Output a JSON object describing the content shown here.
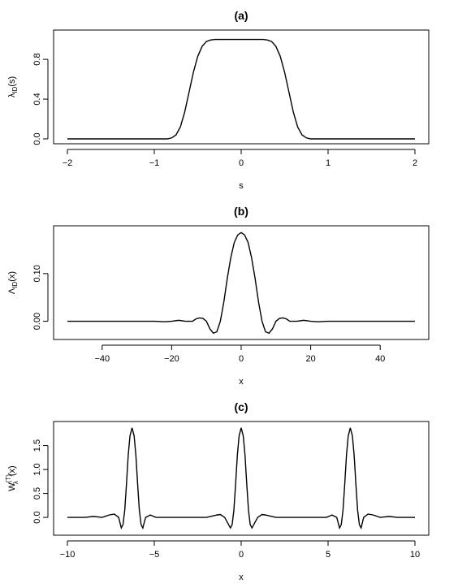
{
  "figure": {
    "background": "#ffffff",
    "line_color": "#000000"
  },
  "chart_data": [
    {
      "type": "line",
      "title": "(a)",
      "xlabel": "s",
      "ylabel": "λ",
      "ylabel_sub": "ID",
      "ylabel_tail": "(s)",
      "xlim": [
        -2,
        2
      ],
      "ylim": [
        0,
        1
      ],
      "xticks": [
        -2,
        -1,
        0,
        1,
        2
      ],
      "xtick_labels": [
        "−2",
        "−1",
        "0",
        "1",
        "2"
      ],
      "yticks": [
        0.0,
        0.4,
        0.8
      ],
      "ytick_labels": [
        "0.0",
        "0.4",
        "0.8"
      ],
      "series": [
        {
          "x": [
            -2.0,
            -1.5,
            -1.0,
            -0.85,
            -0.8,
            -0.75,
            -0.7,
            -0.65,
            -0.6,
            -0.55,
            -0.5,
            -0.45,
            -0.4,
            -0.35,
            -0.3,
            -0.25,
            0.0,
            0.25,
            0.3,
            0.35,
            0.4,
            0.45,
            0.5,
            0.55,
            0.6,
            0.65,
            0.7,
            0.75,
            0.8,
            0.85,
            1.0,
            1.5,
            2.0
          ],
          "y": [
            0.0,
            0.0,
            0.0,
            0.0,
            0.01,
            0.04,
            0.12,
            0.27,
            0.47,
            0.67,
            0.83,
            0.93,
            0.98,
            0.995,
            1.0,
            1.0,
            1.0,
            1.0,
            0.995,
            0.98,
            0.93,
            0.83,
            0.67,
            0.47,
            0.27,
            0.12,
            0.04,
            0.01,
            0.0,
            0.0,
            0.0,
            0.0,
            0.0
          ]
        }
      ]
    },
    {
      "type": "line",
      "title": "(b)",
      "xlabel": "x",
      "ylabel": "Λ",
      "ylabel_sub": "ID",
      "ylabel_tail": "(x)",
      "xlim": [
        -50,
        50
      ],
      "ylim": [
        -0.028,
        0.19
      ],
      "xticks": [
        -40,
        -20,
        0,
        20,
        40
      ],
      "xtick_labels": [
        "−40",
        "−20",
        "0",
        "20",
        "40"
      ],
      "yticks": [
        0.0,
        0.1
      ],
      "ytick_labels": [
        "0.00",
        "0.10"
      ],
      "series": [
        {
          "x": [
            -50,
            -40,
            -30,
            -25,
            -22,
            -20,
            -18,
            -16,
            -14,
            -13,
            -12,
            -11,
            -10,
            -9,
            -8,
            -7,
            -6,
            -5,
            -4,
            -3,
            -2,
            -1,
            0,
            1,
            2,
            3,
            4,
            5,
            6,
            7,
            8,
            9,
            10,
            11,
            12,
            13,
            14,
            16,
            18,
            20,
            22,
            25,
            30,
            40,
            50
          ],
          "y": [
            0.0,
            0.0,
            0.0,
            0.0,
            -0.001,
            0.0,
            0.002,
            0.0,
            0.0,
            0.005,
            0.007,
            0.006,
            0.0,
            -0.016,
            -0.025,
            -0.022,
            0.0,
            0.04,
            0.09,
            0.133,
            0.165,
            0.181,
            0.186,
            0.181,
            0.165,
            0.133,
            0.09,
            0.04,
            0.0,
            -0.022,
            -0.025,
            -0.016,
            0.0,
            0.006,
            0.007,
            0.005,
            0.0,
            0.0,
            0.002,
            0.0,
            -0.001,
            0.0,
            0.0,
            0.0,
            0.0
          ]
        }
      ]
    },
    {
      "type": "line",
      "title": "(c)",
      "xlabel": "x",
      "ylabel": "W",
      "ylabel_sub": "λ",
      "ylabel_sup": "(T)",
      "ylabel_tail": "(x)",
      "xlim": [
        -10,
        10
      ],
      "ylim": [
        -0.27,
        1.9
      ],
      "xticks": [
        -10,
        -5,
        0,
        5,
        10
      ],
      "xtick_labels": [
        "−10",
        "−5",
        "0",
        "5",
        "10"
      ],
      "yticks": [
        0.0,
        0.5,
        1.0,
        1.5
      ],
      "ytick_labels": [
        "0.0",
        "0.5",
        "1.0",
        "1.5"
      ],
      "series": [
        {
          "x": [
            -10.0,
            -9.0,
            -8.5,
            -8.0,
            -7.6,
            -7.3,
            -7.05,
            -6.9,
            -6.8,
            -6.7,
            -6.6,
            -6.5,
            -6.4,
            -6.28,
            -6.16,
            -6.06,
            -5.96,
            -5.86,
            -5.76,
            -5.66,
            -5.5,
            -5.23,
            -4.9,
            -4.0,
            -3.0,
            -2.0,
            -1.4,
            -1.2,
            -0.95,
            -0.62,
            -0.52,
            -0.42,
            -0.32,
            -0.22,
            -0.12,
            0.0,
            0.12,
            0.22,
            0.32,
            0.42,
            0.52,
            0.62,
            0.95,
            1.2,
            1.4,
            2.0,
            3.0,
            4.0,
            4.9,
            5.23,
            5.5,
            5.66,
            5.76,
            5.86,
            5.96,
            6.06,
            6.16,
            6.28,
            6.4,
            6.5,
            6.6,
            6.7,
            6.8,
            6.9,
            7.05,
            7.3,
            7.6,
            8.0,
            8.5,
            9.0,
            10.0
          ],
          "y": [
            0.0,
            0.0,
            0.02,
            0.0,
            0.05,
            0.07,
            0.0,
            -0.22,
            -0.15,
            0.15,
            0.7,
            1.3,
            1.7,
            1.87,
            1.7,
            1.3,
            0.7,
            0.15,
            -0.15,
            -0.22,
            0.0,
            0.05,
            0.0,
            0.0,
            0.0,
            0.0,
            0.05,
            0.06,
            0.0,
            -0.22,
            -0.15,
            0.15,
            0.7,
            1.3,
            1.7,
            1.87,
            1.7,
            1.3,
            0.7,
            0.15,
            -0.15,
            -0.22,
            0.0,
            0.06,
            0.05,
            0.0,
            0.0,
            0.0,
            0.0,
            0.05,
            0.0,
            -0.22,
            -0.15,
            0.15,
            0.7,
            1.3,
            1.7,
            1.87,
            1.7,
            1.3,
            0.7,
            0.15,
            -0.15,
            -0.22,
            0.0,
            0.07,
            0.05,
            0.0,
            0.02,
            0.0,
            0.0
          ]
        }
      ]
    }
  ]
}
